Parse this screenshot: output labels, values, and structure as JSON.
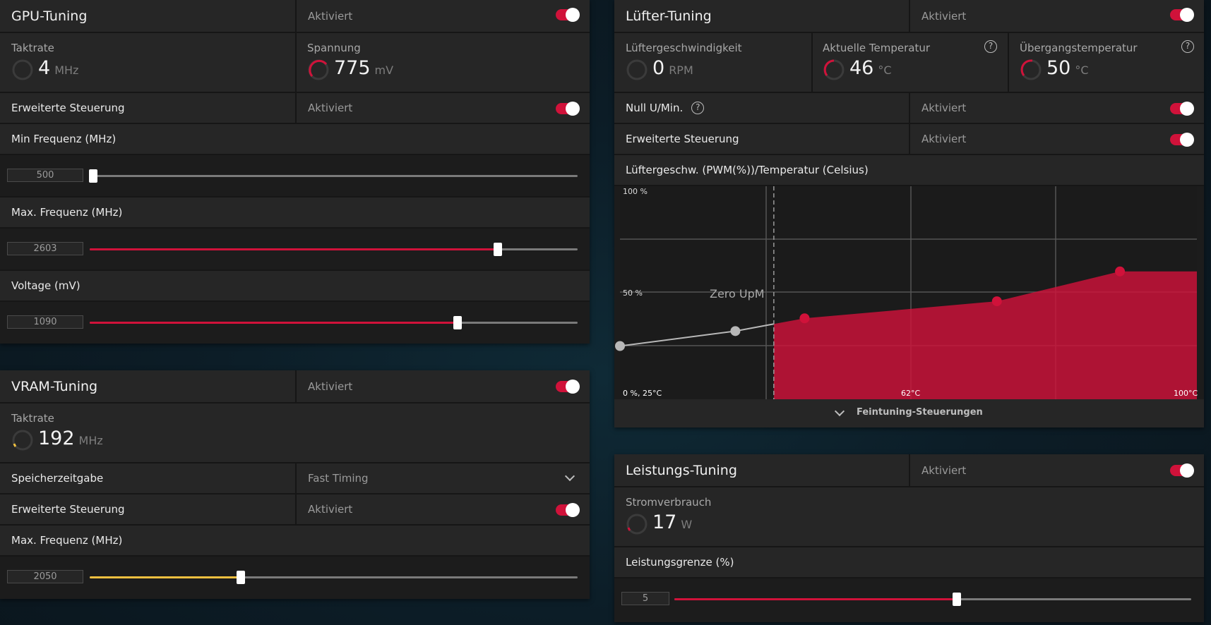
{
  "colors": {
    "accent": "#d0123a",
    "vram_accent": "#f0c040",
    "panel": "#1f1f1f",
    "background": "#0c1d27"
  },
  "gpu": {
    "title": "GPU-Tuning",
    "status": "Aktiviert",
    "clock": {
      "label": "Taktrate",
      "value": "4",
      "unit": "MHz"
    },
    "voltage": {
      "label": "Spannung",
      "value": "775",
      "unit": "mV"
    },
    "advanced": {
      "label": "Erweiterte Steuerung",
      "status": "Aktiviert"
    },
    "min_freq": {
      "label": "Min Frequenz (MHz)",
      "value": "500",
      "fraction": 0.0
    },
    "max_freq": {
      "label": "Max. Frequenz (MHz)",
      "value": "2603",
      "fraction": 0.83
    },
    "volt_slider": {
      "label": "Voltage (mV)",
      "value": "1090",
      "fraction": 0.75
    }
  },
  "vram": {
    "title": "VRAM-Tuning",
    "status": "Aktiviert",
    "clock": {
      "label": "Taktrate",
      "value": "192",
      "unit": "MHz"
    },
    "timing": {
      "label": "Speicherzeitgabe",
      "value": "Fast Timing"
    },
    "advanced": {
      "label": "Erweiterte Steuerung",
      "status": "Aktiviert"
    },
    "max_freq": {
      "label": "Max. Frequenz (MHz)",
      "value": "2050",
      "fraction": 0.335
    }
  },
  "fan": {
    "title": "Lüfter-Tuning",
    "status": "Aktiviert",
    "speed": {
      "label": "Lüftergeschwindigkeit",
      "value": "0",
      "unit": "RPM"
    },
    "temp": {
      "label": "Aktuelle Temperatur",
      "value": "46",
      "unit": "°C"
    },
    "junction": {
      "label": "Übergangstemperatur",
      "value": "50",
      "unit": "°C"
    },
    "zero_rpm": {
      "label": "Null U/Min.",
      "status": "Aktiviert"
    },
    "advanced": {
      "label": "Erweiterte Steuerung",
      "status": "Aktiviert"
    },
    "curve_title": "Lüftergeschw. (PWM(%))/Temperatur (Celsius)",
    "fine_tuning": "Feintuning-Steuerungen",
    "help_glyph": "?"
  },
  "chart_data": {
    "type": "line",
    "x_range": [
      25,
      100
    ],
    "y_range": [
      0,
      100
    ],
    "labels": {
      "y_top": "100 %",
      "y_mid": "50 %",
      "origin": "0 %, 25°C",
      "x_mid": "62°C",
      "x_max": "100°C",
      "zero_rpm": "Zero UpM"
    },
    "zero_rpm_boundary_temp": 45,
    "points": [
      {
        "temp": 25,
        "pwm": 25,
        "active": false
      },
      {
        "temp": 40,
        "pwm": 32,
        "active": false
      },
      {
        "temp": 49,
        "pwm": 38,
        "active": true
      },
      {
        "temp": 74,
        "pwm": 46,
        "active": true
      },
      {
        "temp": 90,
        "pwm": 60,
        "active": true
      }
    ]
  },
  "power": {
    "title": "Leistungs-Tuning",
    "status": "Aktiviert",
    "consumption": {
      "label": "Stromverbrauch",
      "value": "17",
      "unit": "W"
    },
    "limit": {
      "label": "Leistungsgrenze (%)",
      "value": "5",
      "fraction": 0.6
    }
  }
}
